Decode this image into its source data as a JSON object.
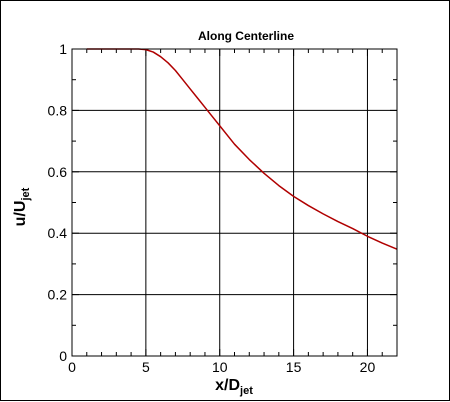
{
  "chart_data": {
    "type": "line",
    "title": "Along Centerline",
    "xlabel": {
      "main": "x/D",
      "sub": "jet"
    },
    "ylabel": {
      "main": "u/U",
      "sub": "jet"
    },
    "xlim": [
      0,
      22
    ],
    "ylim": [
      0,
      1
    ],
    "xticks": [
      0,
      5,
      10,
      15,
      20
    ],
    "yticks": [
      0,
      0.2,
      0.4,
      0.6,
      0.8,
      1
    ],
    "xtick_labels": [
      "0",
      "5",
      "10",
      "15",
      "20"
    ],
    "ytick_labels": [
      "0",
      "0.2",
      "0.4",
      "0.6",
      "0.8",
      "1"
    ],
    "grid": true,
    "legend": "none",
    "line_color": "#b00000",
    "series": [
      {
        "x": [
          1,
          2,
          3,
          4,
          4.5,
          5,
          5.5,
          6,
          6.5,
          7,
          7.5,
          8,
          8.5,
          9,
          9.5,
          10,
          11,
          12,
          13,
          14,
          15,
          16,
          17,
          18,
          19,
          20,
          21,
          22
        ],
        "y": [
          1.0,
          1.0,
          1.0,
          1.0,
          1.0,
          0.998,
          0.99,
          0.975,
          0.955,
          0.93,
          0.9,
          0.87,
          0.84,
          0.81,
          0.78,
          0.75,
          0.69,
          0.64,
          0.595,
          0.555,
          0.52,
          0.49,
          0.463,
          0.438,
          0.415,
          0.39,
          0.368,
          0.348
        ]
      }
    ]
  }
}
